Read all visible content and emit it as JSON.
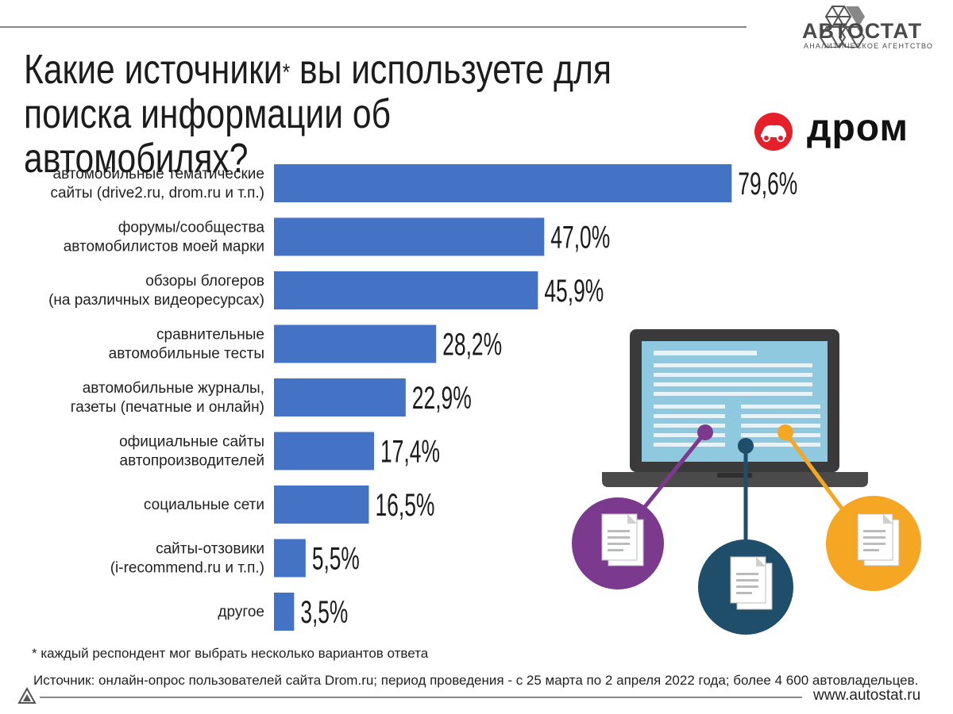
{
  "brand": {
    "name": "АВТОСТАТ",
    "subtitle": "АНАЛИТИЧЕСКОЕ АГЕНТСТВО",
    "logo_icon": "hexagon-logo-icon"
  },
  "title": {
    "text": "Какие источники",
    "star": "*",
    "rest": " вы используете для поиска информации об автомобилях?"
  },
  "partner": {
    "name": "дром",
    "logo_icon": "car-logo-icon",
    "color": "#e5202b"
  },
  "colors": {
    "bar": "#4472c4",
    "purple": "#7b3a8e",
    "navy": "#1f4e6b",
    "orange": "#f5a623"
  },
  "chart_data": {
    "type": "bar",
    "orientation": "horizontal",
    "categories": [
      [
        "автомобильные тематические",
        "сайты (drive2.ru, drom.ru и т.п.)"
      ],
      [
        "форумы/сообщества",
        "автомобилистов моей марки"
      ],
      [
        "обзоры блогеров",
        "(на различных видеоресурсах)"
      ],
      [
        "сравнительные",
        "автомобильные тесты"
      ],
      [
        "автомобильные журналы,",
        "газеты (печатные и онлайн)"
      ],
      [
        "официальные сайты",
        "автопроизводителей"
      ],
      [
        "социальные сети"
      ],
      [
        "сайты-отзовики",
        "(i-recommend.ru и т.п.)"
      ],
      [
        "другое"
      ]
    ],
    "values": [
      79.6,
      47.0,
      45.9,
      28.2,
      22.9,
      17.4,
      16.5,
      5.5,
      3.5
    ],
    "value_labels": [
      "79,6%",
      "47,0%",
      "45,9%",
      "28,2%",
      "22,9%",
      "17,4%",
      "16,5%",
      "5,5%",
      "3,5%"
    ],
    "unit": "%",
    "grid": false,
    "legend": "none"
  },
  "footnote": "* каждый респондент мог выбрать несколько вариантов ответа",
  "source": "Источник: онлайн-опрос пользователей сайта Drom.ru; период проведения - с 25 марта по 2 апреля 2022 года; более 4 600 автовладельцев.",
  "website": "www.autostat.ru",
  "illustration": {
    "icon": "laptop-with-documents-icon"
  }
}
